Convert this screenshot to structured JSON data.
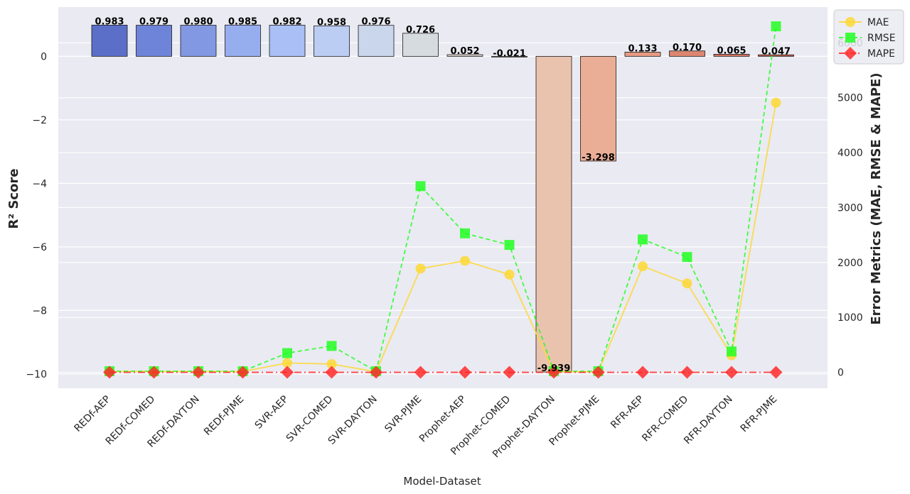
{
  "chart_data": {
    "type": "bar",
    "categories": [
      "REDf-AEP",
      "REDf-COMED",
      "REDf-DAYTON",
      "REDf-PJME",
      "SVR-AEP",
      "SVR-COMED",
      "SVR-DAYTON",
      "SVR-PJME",
      "Prophet-AEP",
      "Prophet-COMED",
      "Prophet-DAYTON",
      "Prophet-PJME",
      "RFR-AEP",
      "RFR-COMED",
      "RFR-DAYTON",
      "RFR-PJME"
    ],
    "xlabel": "Model-Dataset",
    "ylabel": "R² Score",
    "y2label": "Error Metrics (MAE, RMSE & MAPE)",
    "ylim": [
      -10.45,
      1.55
    ],
    "y2lim": [
      -290,
      6650
    ],
    "yticks": [
      0,
      -2,
      -4,
      -6,
      -8,
      -10
    ],
    "yticks_text": [
      "0",
      "−2",
      "−4",
      "−6",
      "−8",
      "−10"
    ],
    "y2ticks": [
      0,
      1000,
      2000,
      3000,
      4000,
      5000,
      6000
    ],
    "y2ticks_text": [
      "0",
      "1000",
      "2000",
      "3000",
      "4000",
      "5000",
      "6000"
    ],
    "bar_series": {
      "name": "R² Score",
      "values": [
        0.983,
        0.979,
        0.98,
        0.985,
        0.982,
        0.958,
        0.976,
        0.726,
        0.052,
        -0.021,
        -9.939,
        -3.298,
        0.133,
        0.17,
        0.065,
        0.047
      ],
      "value_labels": [
        "0.983",
        "0.979",
        "0.980",
        "0.985",
        "0.982",
        "0.958",
        "0.976",
        "0.726",
        "0.052",
        "-0.021",
        "-9.939",
        "-3.298",
        "0.133",
        "0.170",
        "0.065",
        "0.047"
      ],
      "colors": [
        "#5b6fc8",
        "#6e84d8",
        "#8298e2",
        "#97aeee",
        "#a9bff5",
        "#bbcdf3",
        "#cad6ec",
        "#d6dbe0",
        "#e4d8cf",
        "#ecd3c3",
        "#eac3af",
        "#eaae97",
        "#e69b82",
        "#dd8670",
        "#d7735e",
        "#cc5d4c"
      ]
    },
    "series": [
      {
        "name": "MAE",
        "color": "#fdd835",
        "marker": "circle",
        "linestyle": "solid",
        "values": [
          15,
          15,
          15,
          15,
          170,
          150,
          10,
          1890,
          2030,
          1780,
          10,
          10,
          1930,
          1620,
          310,
          4910
        ]
      },
      {
        "name": "RMSE",
        "color": "#22ff22",
        "marker": "square",
        "linestyle": "dashed",
        "values": [
          20,
          20,
          20,
          20,
          350,
          480,
          20,
          3390,
          2530,
          2320,
          20,
          20,
          2420,
          2100,
          380,
          6300
        ]
      },
      {
        "name": "MAPE",
        "color": "#ff2a2a",
        "marker": "diamond",
        "linestyle": "dashdot",
        "values": [
          0,
          0,
          0,
          0,
          0,
          0,
          0,
          0,
          0,
          0,
          0,
          0,
          0,
          0,
          0,
          0
        ]
      }
    ],
    "legend": {
      "placement": "top-right",
      "entries": [
        "MAE",
        "RMSE",
        "MAPE"
      ]
    },
    "grid": true,
    "background": "#eaeaf2"
  }
}
